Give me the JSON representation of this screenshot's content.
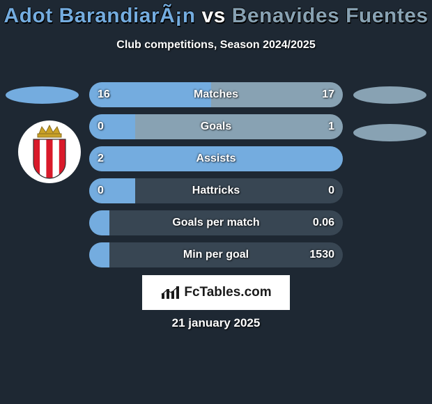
{
  "background_color": "#1e2833",
  "player1": {
    "name": "Adot BarandiarÃ¡n",
    "color": "#74acdf"
  },
  "player2": {
    "name": "Benavides Fuentes",
    "color": "#88a2b3"
  },
  "title_vs": "vs",
  "title_fontsize": 30,
  "subtitle": "Club competitions, Season 2024/2025",
  "subtitle_fontsize": 16,
  "track_bg": "#384653",
  "label_fontsize": 16,
  "rows": [
    {
      "label": "Matches",
      "left": "16",
      "right": "17",
      "left_pct": 48,
      "right_pct": 52
    },
    {
      "label": "Goals",
      "left": "0",
      "right": "1",
      "left_pct": 18,
      "right_pct": 82
    },
    {
      "label": "Assists",
      "left": "2",
      "right": "",
      "left_pct": 100,
      "right_pct": 0
    },
    {
      "label": "Hattricks",
      "left": "0",
      "right": "0",
      "left_pct": 18,
      "right_pct": 0
    },
    {
      "label": "Goals per match",
      "left": "",
      "right": "0.06",
      "left_pct": 8,
      "right_pct": 0
    },
    {
      "label": "Min per goal",
      "left": "",
      "right": "1530",
      "left_pct": 8,
      "right_pct": 0
    }
  ],
  "logo_text": "FcTables.com",
  "date": "21 january 2025",
  "badge": {
    "stripes": [
      "#d91a2a",
      "#ffffff",
      "#d91a2a",
      "#ffffff",
      "#d91a2a"
    ],
    "crown_color": "#c9a227"
  }
}
